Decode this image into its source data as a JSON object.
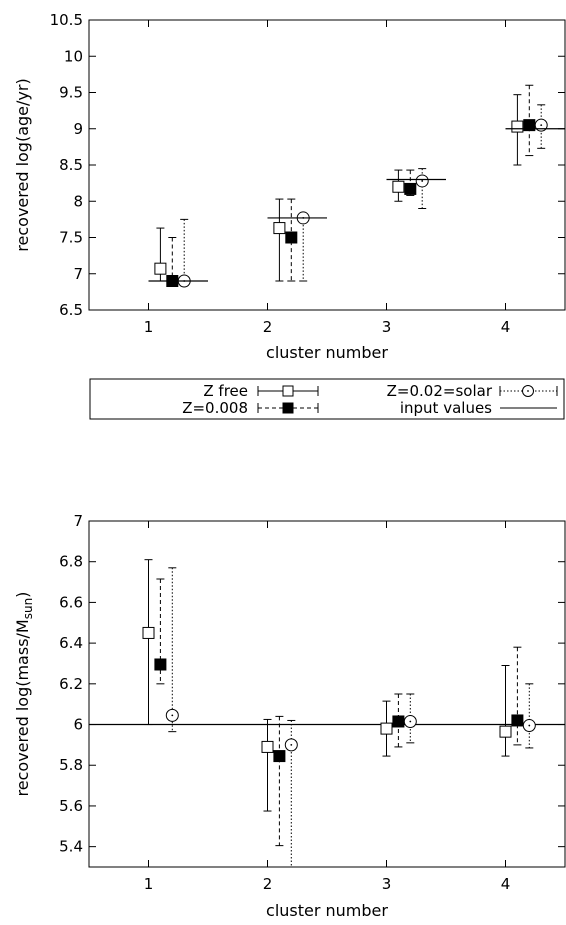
{
  "chart_data": [
    {
      "type": "scatter",
      "xlabel": "cluster number",
      "ylabel": "recovered log(age/yr)",
      "xlim": [
        0.5,
        4.5
      ],
      "ylim": [
        6.5,
        10.5
      ],
      "xticks": [
        1,
        2,
        3,
        4
      ],
      "yticks": [
        6.5,
        7,
        7.5,
        8,
        8.5,
        9,
        9.5,
        10,
        10.5
      ],
      "ytick_labels": [
        "6.5",
        "7",
        "7.5",
        "8",
        "8.5",
        "9",
        "9.5",
        "10",
        "10.5"
      ],
      "grid": false,
      "series": [
        {
          "name": "Z free",
          "marker": "open-square",
          "line": "solid",
          "x": [
            1.1,
            2.1,
            3.1,
            4.1
          ],
          "y": [
            7.07,
            7.63,
            8.2,
            9.03
          ],
          "ylow": [
            6.9,
            6.9,
            8.0,
            8.5
          ],
          "yhigh": [
            7.63,
            8.03,
            8.43,
            9.47
          ]
        },
        {
          "name": "Z=0.008",
          "marker": "filled-square",
          "line": "dashed",
          "x": [
            1.2,
            2.2,
            3.2,
            4.2
          ],
          "y": [
            6.9,
            7.5,
            8.17,
            9.05
          ],
          "ylow": [
            6.9,
            6.9,
            8.08,
            8.63
          ],
          "yhigh": [
            7.5,
            8.03,
            8.43,
            9.6
          ]
        },
        {
          "name": "Z=0.02=solar",
          "marker": "open-circle",
          "line": "dotted",
          "x": [
            1.3,
            2.3,
            3.3,
            4.3
          ],
          "y": [
            6.9,
            7.77,
            8.28,
            9.05
          ],
          "ylow": [
            6.9,
            6.9,
            7.9,
            8.73
          ],
          "yhigh": [
            7.75,
            7.77,
            8.45,
            9.33
          ]
        },
        {
          "name": "input values",
          "marker": "none",
          "line": "solid",
          "segments": [
            [
              1.0,
              1.5,
              6.9
            ],
            [
              2.0,
              2.5,
              7.77
            ],
            [
              3.0,
              3.5,
              8.3
            ],
            [
              4.0,
              4.5,
              9.0
            ]
          ]
        }
      ]
    },
    {
      "type": "scatter",
      "xlabel": "cluster number",
      "ylabel": "recovered log(mass/M",
      "ylabel_sub": "sun",
      "ylabel_end": ")",
      "xlim": [
        0.5,
        4.5
      ],
      "ylim": [
        5.3,
        7.0
      ],
      "xticks": [
        1,
        2,
        3,
        4
      ],
      "yticks": [
        5.4,
        5.6,
        5.8,
        6.0,
        6.2,
        6.4,
        6.6,
        6.8,
        7.0
      ],
      "ytick_labels": [
        "5.4",
        "5.6",
        "5.8",
        "6",
        "6.2",
        "6.4",
        "6.6",
        "6.8",
        "7"
      ],
      "hline": 6.0,
      "grid": false,
      "series": [
        {
          "name": "Z free",
          "marker": "open-square",
          "line": "solid",
          "x": [
            1.0,
            2.0,
            3.0,
            4.0
          ],
          "y": [
            6.45,
            5.89,
            5.98,
            5.965
          ],
          "ylow": [
            6.0,
            5.575,
            5.845,
            5.845
          ],
          "yhigh": [
            6.81,
            6.025,
            6.115,
            6.29
          ]
        },
        {
          "name": "Z=0.008",
          "marker": "filled-square",
          "line": "dashed",
          "x": [
            1.1,
            2.1,
            3.1,
            4.1
          ],
          "y": [
            6.295,
            5.845,
            6.015,
            6.02
          ],
          "ylow": [
            6.2,
            5.405,
            5.89,
            5.9
          ],
          "yhigh": [
            6.715,
            6.04,
            6.15,
            6.38
          ]
        },
        {
          "name": "Z=0.02=solar",
          "marker": "open-circle",
          "line": "dotted",
          "x": [
            1.2,
            2.2,
            3.2,
            4.2
          ],
          "y": [
            6.045,
            5.9,
            6.015,
            5.995
          ],
          "ylow": [
            5.965,
            5.3,
            5.91,
            5.885
          ],
          "yhigh": [
            6.77,
            6.02,
            6.15,
            6.2
          ]
        }
      ]
    }
  ],
  "legend": {
    "items": [
      {
        "label": "Z free",
        "marker": "open-square",
        "line": "solid"
      },
      {
        "label": "Z=0.02=solar",
        "marker": "open-circle",
        "line": "dotted"
      },
      {
        "label": "Z=0.008",
        "marker": "filled-square",
        "line": "dashed"
      },
      {
        "label": "input values",
        "marker": "none",
        "line": "solid"
      }
    ]
  }
}
